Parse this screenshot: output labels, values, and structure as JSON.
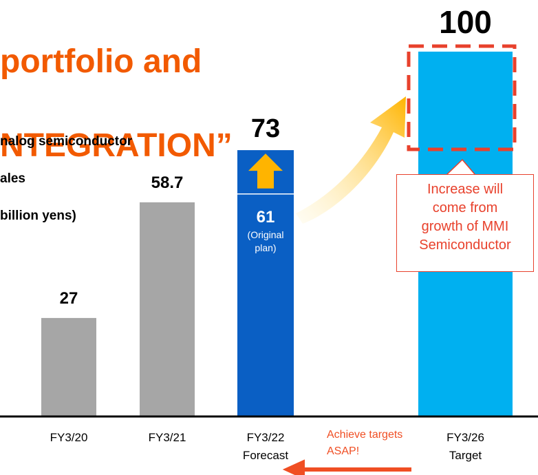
{
  "chart_data": {
    "type": "bar",
    "title_lines": [
      "portfolio and",
      "NTEGRATION”"
    ],
    "y_label_lines": [
      "nalog semiconductor",
      "ales",
      "billion yens)"
    ],
    "categories": [
      "FY3/20",
      "FY3/21",
      "FY3/22\nForecast",
      "FY3/26\nTarget"
    ],
    "values": [
      27,
      58.7,
      73,
      100
    ],
    "colors": [
      "#a6a6a6",
      "#a6a6a6",
      "#0a5fc4",
      "#00b0f0"
    ],
    "ylim": [
      0,
      100
    ],
    "original_plan": {
      "value": 61,
      "label": "(Original\nplan)"
    },
    "annotations": [
      "Increase will\ncome from\ngrowth of MMI\nSemiconductor",
      "Achieve targets\nASAP!"
    ]
  }
}
